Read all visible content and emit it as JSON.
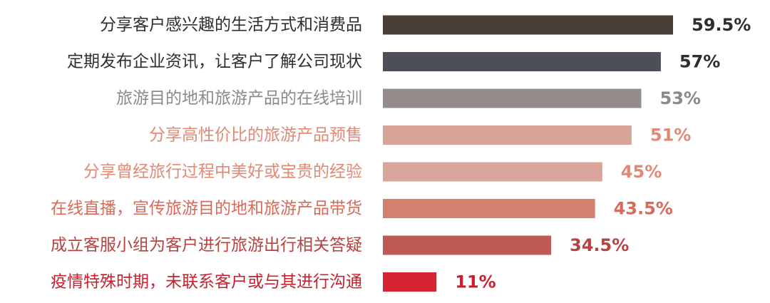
{
  "chart_data": {
    "type": "bar",
    "orientation": "horizontal",
    "title": "",
    "xlabel": "",
    "ylabel": "",
    "value_suffix": "%",
    "xlim": [
      0,
      59.5
    ],
    "grid": false,
    "legend": "none",
    "categories": [
      "分享客户感兴趣的生活方式和消费品",
      "定期发布企业资讯，让客户了解公司现状",
      "旅游目的地和旅游产品的在线培训",
      "分享高性价比的旅游产品预售",
      "分享曾经旅行过程中美好或宝贵的经验",
      "在线直播，宣传旅游目的地和旅游产品带货",
      "成立客服小组为客户进行旅游出行相关答疑",
      "疫情特殊时期，未联系客户或与其进行沟通"
    ],
    "values": [
      59.5,
      57,
      53,
      51,
      45,
      43.5,
      34.5,
      11
    ],
    "value_labels": [
      "59.5%",
      "57%",
      "53%",
      "51%",
      "45%",
      "43.5%",
      "34.5%",
      "11%"
    ],
    "bar_colors": [
      "#4a3f37",
      "#4b4f57",
      "#958c8c",
      "#d9a399",
      "#d9a59a",
      "#d4806f",
      "#bf5a52",
      "#d62433"
    ],
    "label_colors": [
      "#2e2e2e",
      "#2e2e2e",
      "#8a8a8a",
      "#e08a75",
      "#e08a75",
      "#d86a5a",
      "#b54340",
      "#c8202e"
    ]
  }
}
